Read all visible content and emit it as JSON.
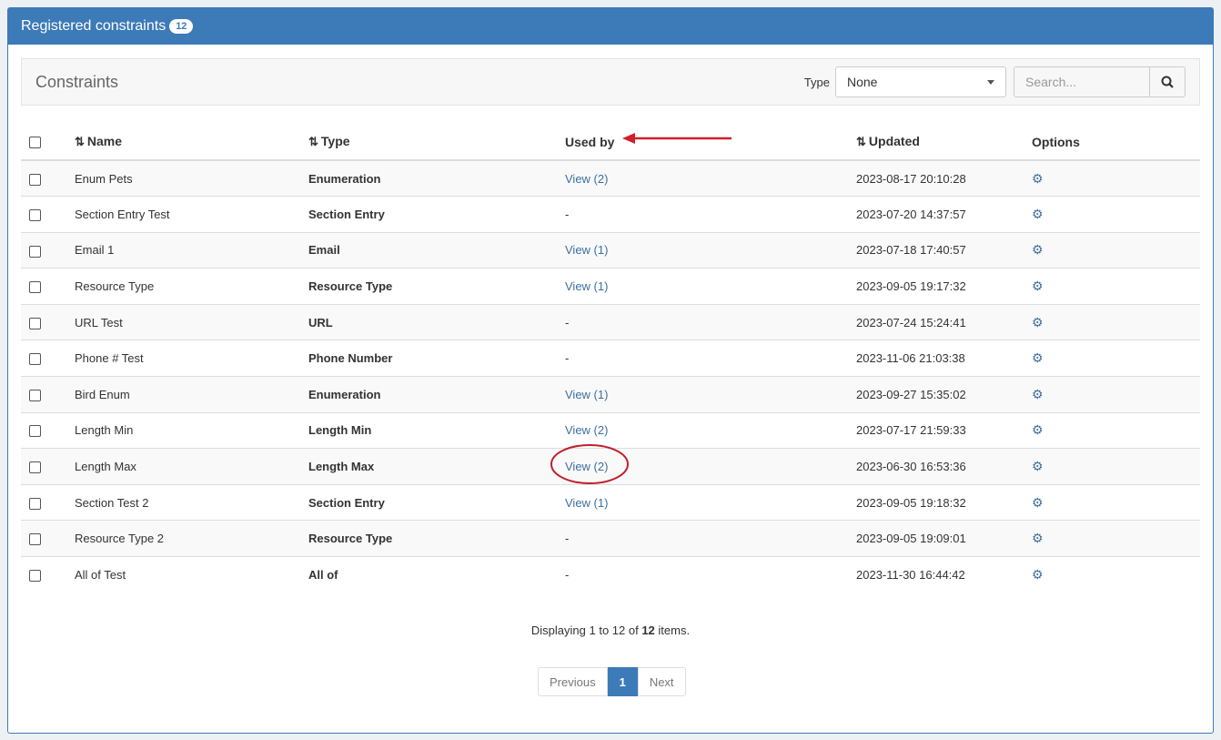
{
  "panel": {
    "title": "Registered constraints",
    "count": "12"
  },
  "toolbar": {
    "title": "Constraints",
    "type_label": "Type",
    "type_value": "None",
    "search_placeholder": "Search..."
  },
  "columns": {
    "name": "Name",
    "type": "Type",
    "used_by": "Used by",
    "updated": "Updated",
    "options": "Options"
  },
  "rows": [
    {
      "name": "Enum Pets",
      "type": "Enumeration",
      "used_by": "View (2)",
      "updated": "2023-08-17 20:10:28"
    },
    {
      "name": "Section Entry Test",
      "type": "Section Entry",
      "used_by": "-",
      "updated": "2023-07-20 14:37:57"
    },
    {
      "name": "Email 1",
      "type": "Email",
      "used_by": "View (1)",
      "updated": "2023-07-18 17:40:57"
    },
    {
      "name": "Resource Type",
      "type": "Resource Type",
      "used_by": "View (1)",
      "updated": "2023-09-05 19:17:32"
    },
    {
      "name": "URL Test",
      "type": "URL",
      "used_by": "-",
      "updated": "2023-07-24 15:24:41"
    },
    {
      "name": "Phone # Test",
      "type": "Phone Number",
      "used_by": "-",
      "updated": "2023-11-06 21:03:38"
    },
    {
      "name": "Bird Enum",
      "type": "Enumeration",
      "used_by": "View (1)",
      "updated": "2023-09-27 15:35:02"
    },
    {
      "name": "Length Min",
      "type": "Length Min",
      "used_by": "View (2)",
      "updated": "2023-07-17 21:59:33"
    },
    {
      "name": "Length Max",
      "type": "Length Max",
      "used_by": "View (2)",
      "updated": "2023-06-30 16:53:36"
    },
    {
      "name": "Section Test 2",
      "type": "Section Entry",
      "used_by": "View (1)",
      "updated": "2023-09-05 19:18:32"
    },
    {
      "name": "Resource Type 2",
      "type": "Resource Type",
      "used_by": "-",
      "updated": "2023-09-05 19:09:01"
    },
    {
      "name": "All of Test",
      "type": "All of",
      "used_by": "-",
      "updated": "2023-11-30 16:44:42"
    }
  ],
  "footer": {
    "prefix": "Displaying 1 to 12 of",
    "total": "12",
    "suffix": "items."
  },
  "pagination": {
    "previous": "Previous",
    "current": "1",
    "next": "Next"
  },
  "colors": {
    "primary": "#3d7ab8",
    "annotation": "#d0202a"
  }
}
